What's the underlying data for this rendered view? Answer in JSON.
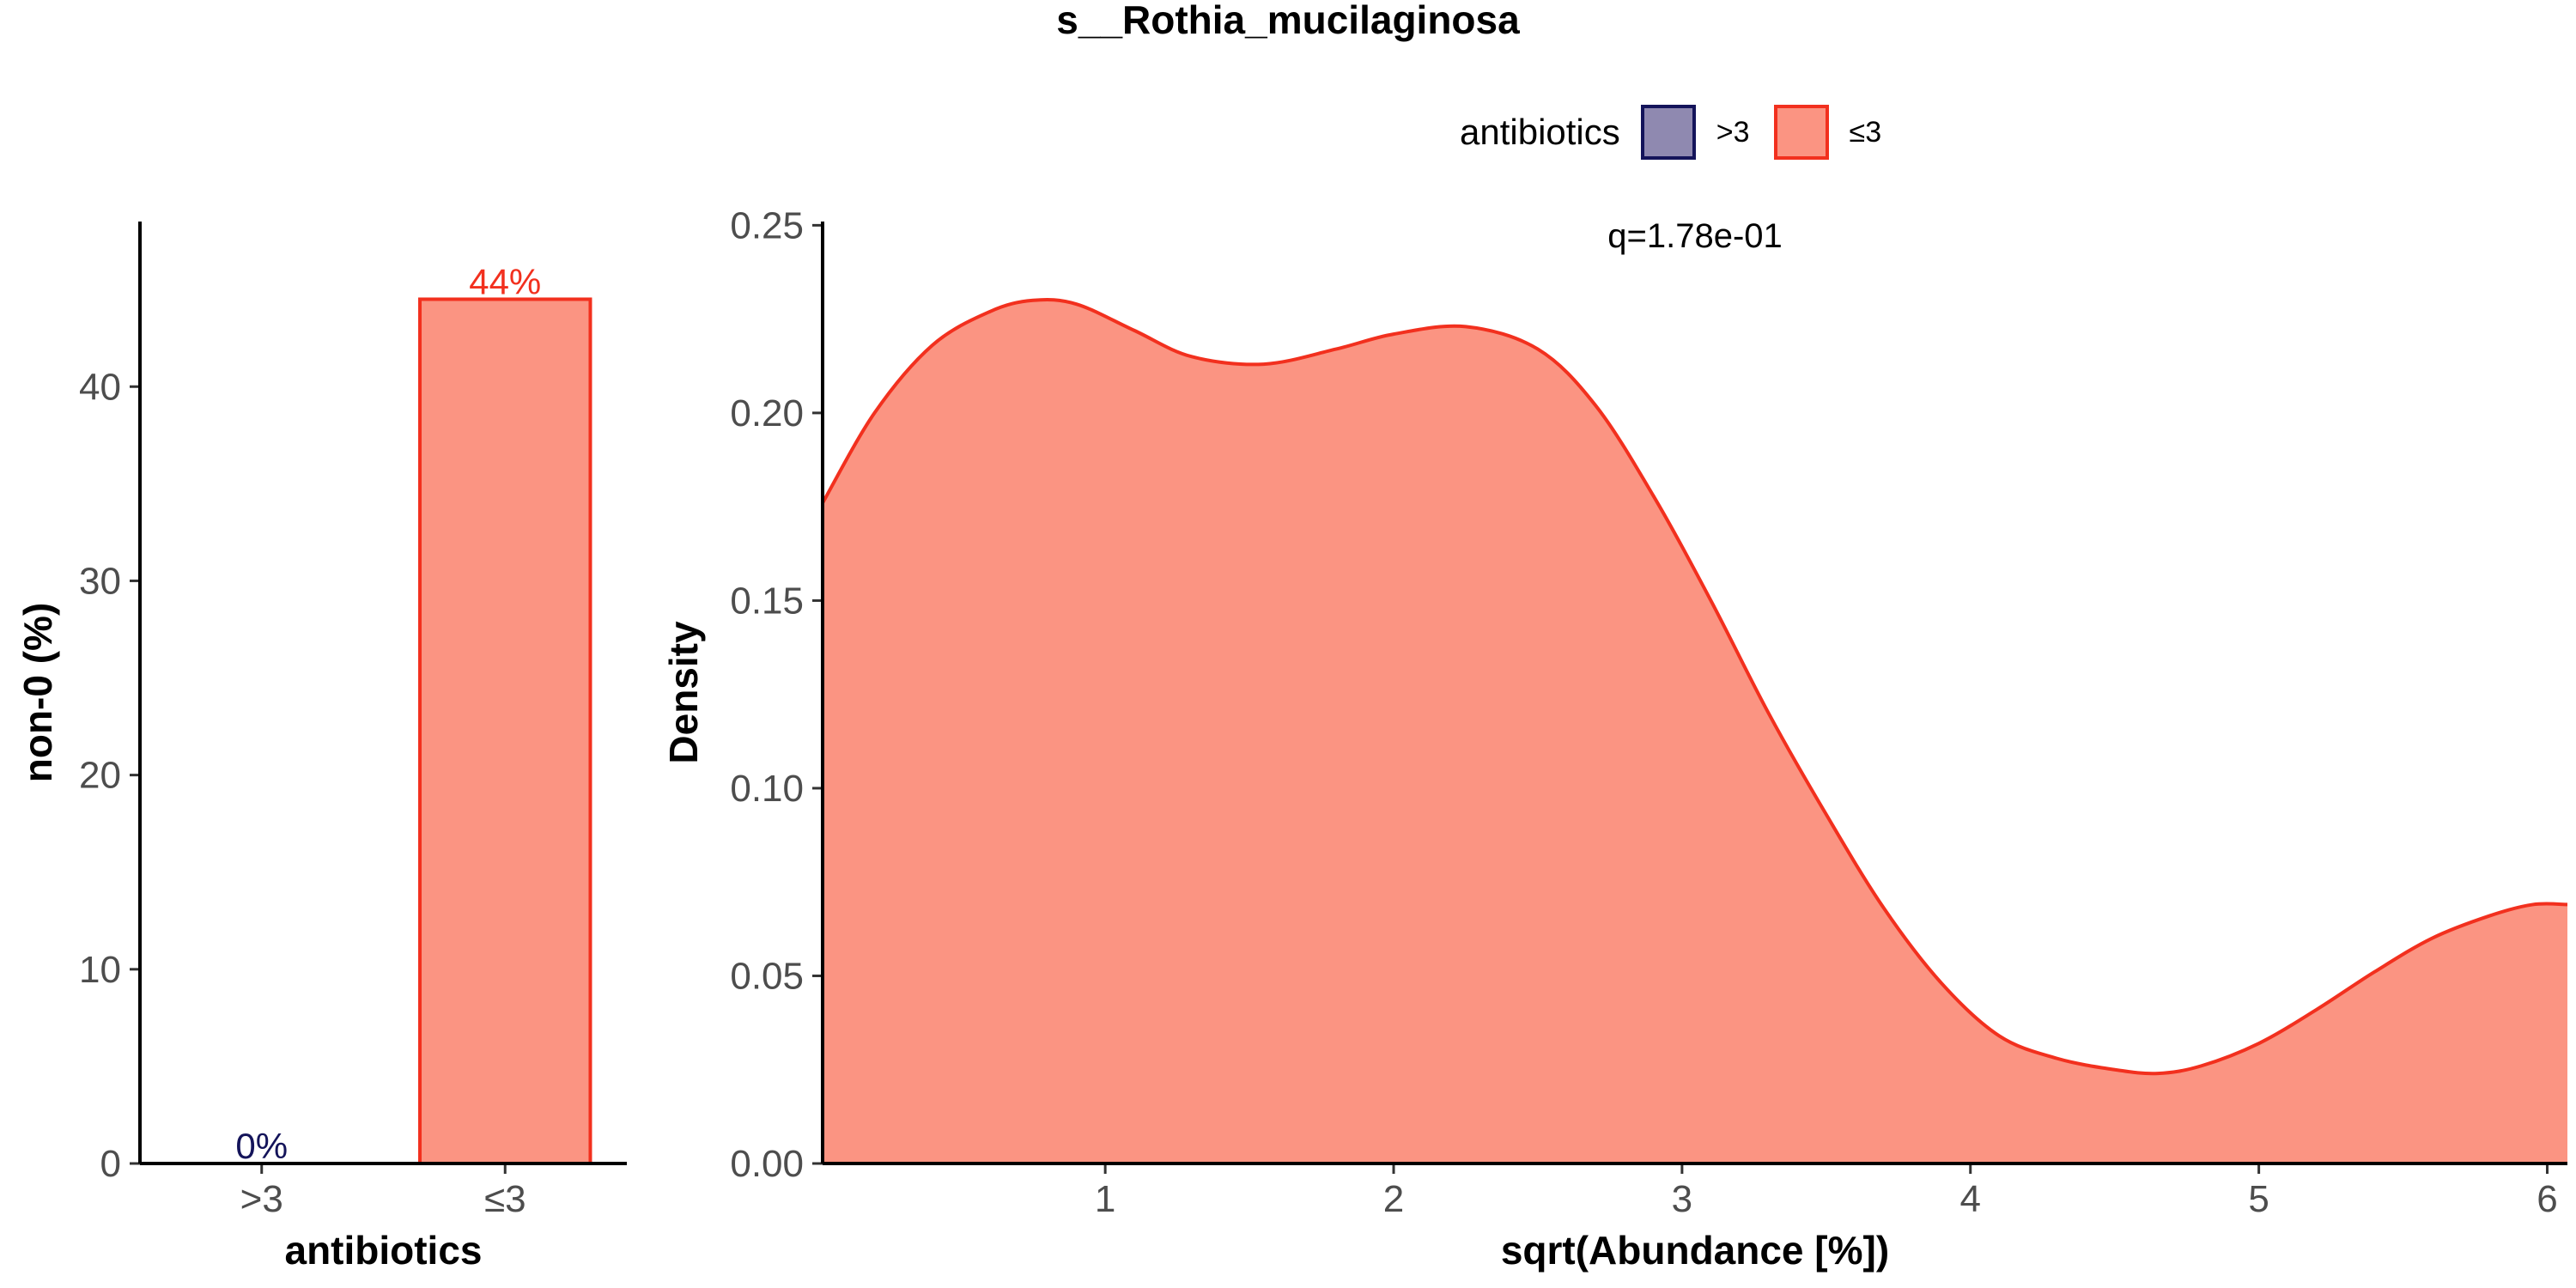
{
  "title": "s__Rothia_mucilaginosa",
  "legend": {
    "title": "antibiotics",
    "entries": [
      {
        "label": ">3",
        "fill": "#8f89b0",
        "stroke": "#14145a"
      },
      {
        "label": "≤3",
        "fill": "#fb9482",
        "stroke": "#f2301e"
      }
    ]
  },
  "chart_data": [
    {
      "type": "bar",
      "xlabel": "antibiotics",
      "ylabel": "non-0 (%)",
      "categories": [
        ">3",
        "≤3"
      ],
      "values": [
        0,
        44.5
      ],
      "data_labels": [
        "0%",
        "44%"
      ],
      "label_colors": [
        "#14145a",
        "#f2301e"
      ],
      "fills": [
        "#8f89b0",
        "#fb9482"
      ],
      "strokes": [
        "#14145a",
        "#f2301e"
      ],
      "ylim": [
        0,
        48.5
      ],
      "yticks": [
        0,
        10,
        20,
        30,
        40
      ],
      "grid": false
    },
    {
      "type": "area",
      "xlabel": "sqrt(Abundance [%])",
      "ylabel": "Density",
      "annotation": "q=1.78e-01",
      "xlim": [
        0.02,
        6.07
      ],
      "ylim": [
        0,
        0.251
      ],
      "xticks": [
        1,
        2,
        3,
        4,
        5,
        6
      ],
      "yticks": [
        "0.00",
        "0.05",
        "0.10",
        "0.15",
        "0.20",
        "0.25"
      ],
      "grid": false,
      "series": [
        {
          "name": "≤3",
          "fill": "#fb9482",
          "stroke": "#f2301e",
          "x": [
            0.02,
            0.2,
            0.4,
            0.6,
            0.75,
            0.9,
            1.1,
            1.3,
            1.55,
            1.8,
            2.0,
            2.25,
            2.5,
            2.7,
            2.9,
            3.1,
            3.3,
            3.5,
            3.7,
            3.9,
            4.1,
            4.3,
            4.5,
            4.65,
            4.8,
            5.0,
            5.2,
            5.4,
            5.6,
            5.8,
            5.95,
            6.07
          ],
          "y": [
            0.176,
            0.2,
            0.218,
            0.227,
            0.23,
            0.229,
            0.222,
            0.215,
            0.213,
            0.217,
            0.221,
            0.223,
            0.217,
            0.202,
            0.178,
            0.15,
            0.12,
            0.093,
            0.068,
            0.048,
            0.034,
            0.028,
            0.025,
            0.024,
            0.026,
            0.032,
            0.041,
            0.051,
            0.06,
            0.066,
            0.069,
            0.069
          ]
        }
      ]
    }
  ]
}
